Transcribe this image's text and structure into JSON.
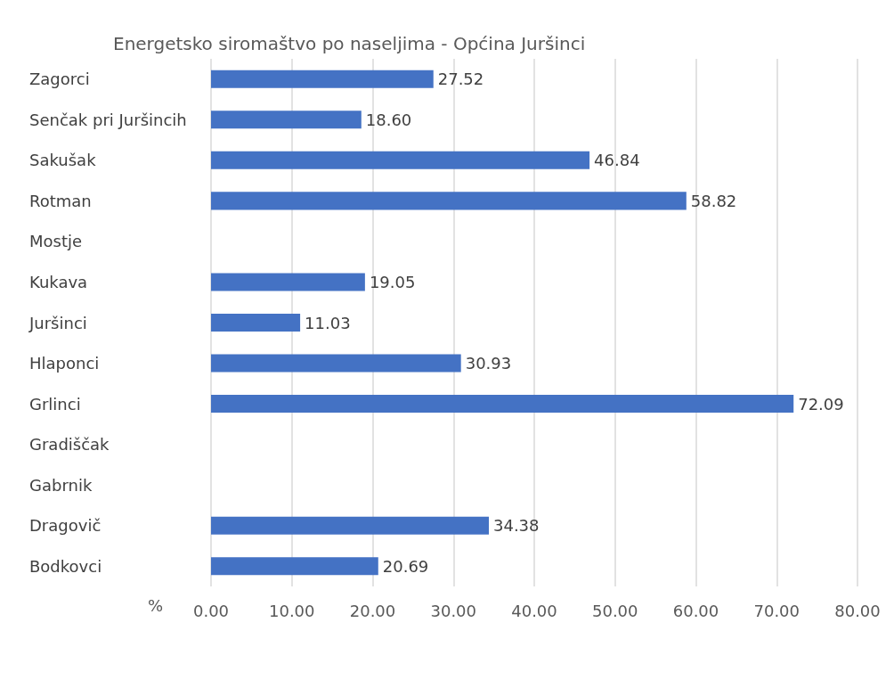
{
  "chart_data": {
    "type": "bar",
    "orientation": "horizontal",
    "title": "Energetsko siromaštvo po naseljima - Općina Juršinci",
    "xlabel": "%",
    "categories": [
      "Zagorci",
      "Senčak pri Juršincih",
      "Sakušak",
      "Rotman",
      "Mostje",
      "Kukava",
      "Juršinci",
      "Hlaponci",
      "Grlinci",
      "Gradiščak",
      "Gabrnik",
      "Dragovič",
      "Bodkovci"
    ],
    "values": [
      27.52,
      18.6,
      46.84,
      58.82,
      null,
      19.05,
      11.03,
      30.93,
      72.09,
      null,
      null,
      34.38,
      20.69
    ],
    "value_labels": [
      "27.52",
      "18.60",
      "46.84",
      "58.82",
      null,
      "19.05",
      "11.03",
      "30.93",
      "72.09",
      null,
      null,
      "34.38",
      "20.69"
    ],
    "color": "#4472c4",
    "xlim": [
      0,
      80
    ],
    "xticks": [
      {
        "value": 0,
        "label": "0.00"
      },
      {
        "value": 10,
        "label": "10.00"
      },
      {
        "value": 20,
        "label": "20.00"
      },
      {
        "value": 30,
        "label": "30.00"
      },
      {
        "value": 40,
        "label": "40.00"
      },
      {
        "value": 50,
        "label": "50.00"
      },
      {
        "value": 60,
        "label": "60.00"
      },
      {
        "value": 70,
        "label": "70.00"
      },
      {
        "value": 80,
        "label": "80.00"
      }
    ],
    "grid": "x"
  }
}
